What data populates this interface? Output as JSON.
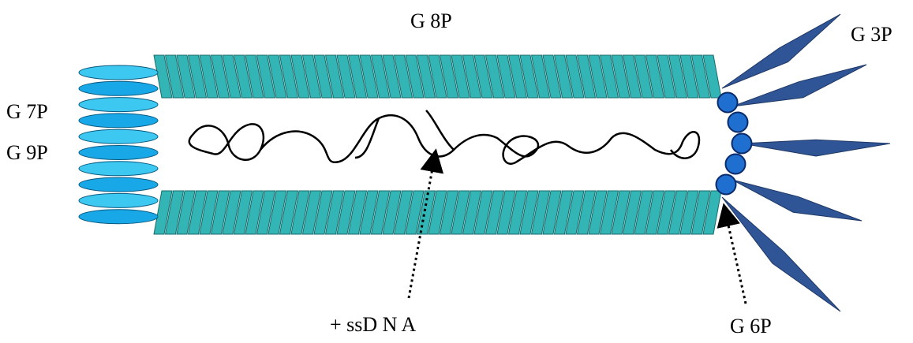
{
  "labels": [
    "G 8P",
    "G 3P",
    "G 7P",
    "G 9P",
    "+ ssD N A",
    "G 6P"
  ]
}
